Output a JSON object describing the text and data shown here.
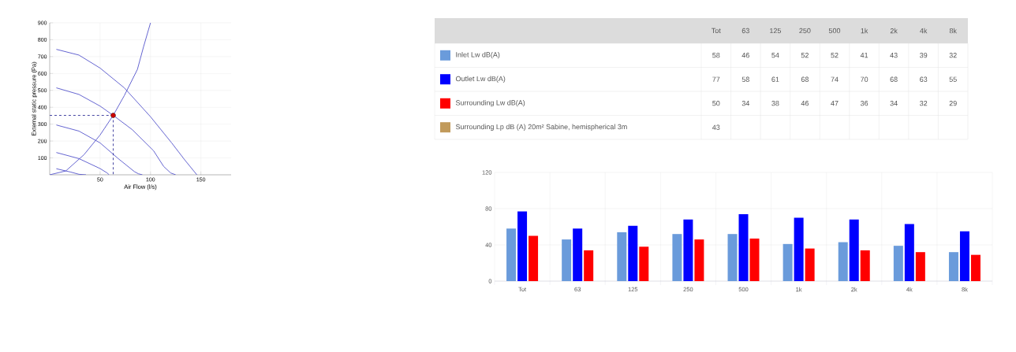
{
  "chart_data": [
    {
      "type": "line",
      "xlabel": "Air Flow (l/s)",
      "ylabel": "External static pressure (Pa)",
      "xlim": [
        0,
        180
      ],
      "ylim": [
        0,
        900
      ],
      "xticks": [
        50,
        100,
        150
      ],
      "yticks": [
        100,
        200,
        300,
        400,
        500,
        600,
        700,
        800,
        900
      ],
      "grid": true,
      "marker": "none",
      "series": [
        {
          "color": "#5555cc",
          "x": [
            6.6,
            29,
            50,
            74,
            100,
            121,
            134,
            146
          ],
          "values": [
            743,
            709,
            632,
            515,
            344,
            189,
            88,
            0
          ]
        },
        {
          "color": "#5555cc",
          "x": [
            6.6,
            29,
            50,
            63,
            82,
            103,
            113,
            120,
            125
          ],
          "values": [
            515,
            476,
            407,
            352,
            267,
            143,
            50,
            11,
            0
          ]
        },
        {
          "color": "#5555cc",
          "x": [
            6.6,
            29,
            50,
            68,
            84,
            88,
            92
          ],
          "values": [
            295,
            259,
            189,
            96,
            19,
            6,
            0
          ]
        },
        {
          "color": "#5555cc",
          "x": [
            6.6,
            29,
            50,
            57,
            59
          ],
          "values": [
            132,
            96,
            37,
            11,
            0
          ]
        },
        {
          "color": "#5555cc",
          "x": [
            6.6,
            21,
            29,
            36
          ],
          "values": [
            36,
            16,
            3,
            0
          ]
        },
        {
          "color": "#5555cc",
          "x": [
            0,
            16,
            34,
            50,
            63,
            74,
            87,
            93,
            100
          ],
          "values": [
            0,
            23,
            119,
            236,
            352,
            469,
            624,
            756,
            900
          ]
        },
        {
          "type": "line",
          "line_style": "dashed",
          "color": "#333399",
          "x": [
            0,
            63
          ],
          "values": [
            352,
            352
          ]
        },
        {
          "type": "line",
          "line_style": "dashed",
          "color": "#333399",
          "x": [
            63,
            63
          ],
          "values": [
            352,
            0
          ]
        },
        {
          "type": "scatter",
          "marker": "circle",
          "color": "#cc0000",
          "x": [
            63
          ],
          "values": [
            352
          ]
        }
      ]
    },
    {
      "type": "other",
      "data_labels": true,
      "categories": [
        "Tot",
        "63",
        "125",
        "250",
        "500",
        "1k",
        "2k",
        "4k",
        "8k"
      ],
      "series": [
        {
          "name": "Inlet Lw dB(A)",
          "color": "#6a9bdb",
          "values": [
            58,
            46,
            54,
            52,
            52,
            41,
            43,
            39,
            32
          ]
        },
        {
          "name": "Outlet Lw dB(A)",
          "color": "#0000ff",
          "values": [
            77,
            58,
            61,
            68,
            74,
            70,
            68,
            63,
            55
          ]
        },
        {
          "name": "Surrounding Lw dB(A)",
          "color": "#ff0000",
          "values": [
            50,
            34,
            38,
            46,
            47,
            36,
            34,
            32,
            29
          ]
        },
        {
          "name": "Surrounding Lp dB (A) 20m² Sabine, hemispherical 3m",
          "color": "#c19a5b",
          "values": [
            43,
            null,
            null,
            null,
            null,
            null,
            null,
            null,
            null
          ]
        }
      ]
    },
    {
      "type": "bar",
      "categories": [
        "Tot",
        "63",
        "125",
        "250",
        "500",
        "1k",
        "2k",
        "4k",
        "8k"
      ],
      "ylim": [
        0,
        120
      ],
      "yticks": [
        0,
        40,
        80,
        120
      ],
      "grid": true,
      "series": [
        {
          "color": "#6a9bdb",
          "values": [
            58,
            46,
            54,
            52,
            52,
            41,
            43,
            39,
            32
          ]
        },
        {
          "color": "#0000ff",
          "values": [
            77,
            58,
            61,
            68,
            74,
            70,
            68,
            63,
            55
          ]
        },
        {
          "color": "#ff0000",
          "values": [
            50,
            34,
            38,
            46,
            47,
            36,
            34,
            32,
            29
          ]
        }
      ]
    }
  ]
}
